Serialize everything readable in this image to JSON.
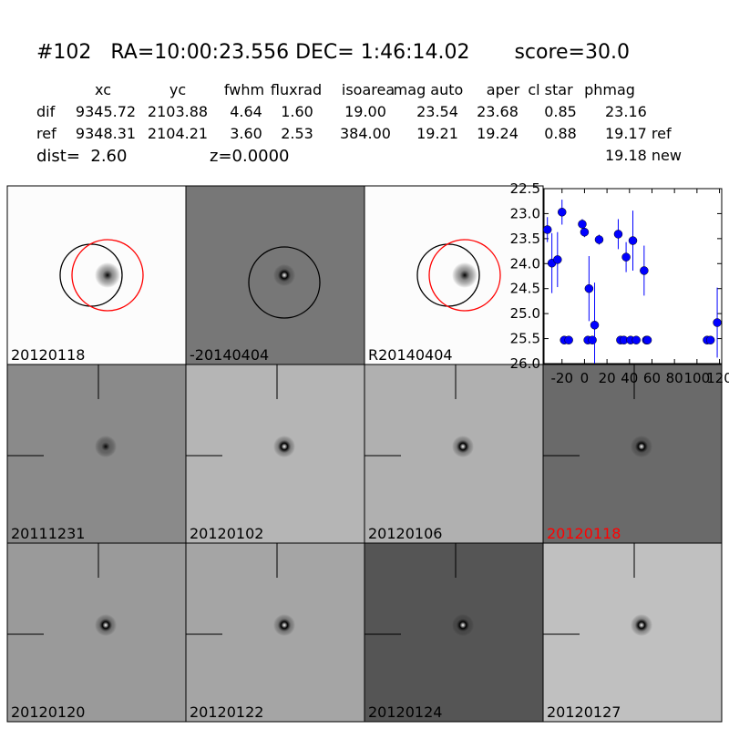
{
  "header": {
    "title": "#102   RA=10:00:23.556 DEC= 1:46:14.02       score=30.0",
    "columns": [
      "xc",
      "yc",
      "fwhm",
      "fluxrad",
      "isoarea",
      "mag auto",
      "aper",
      "cl star",
      "phmag"
    ],
    "rows": [
      {
        "label": "dif",
        "cells": [
          "9345.72",
          "2103.88",
          "4.64",
          "1.60",
          "19.00",
          "23.54",
          "23.68",
          "0.85",
          "23.16"
        ]
      },
      {
        "label": "ref",
        "cells": [
          "9348.31",
          "2104.21",
          "3.60",
          "2.53",
          "384.00",
          "19.21",
          "19.24",
          "0.88",
          "19.17 ref"
        ]
      }
    ],
    "dist": "dist=  2.60",
    "z": "z=0.0000",
    "phmag_new": "19.18 new"
  },
  "stamps": [
    "20120118",
    "-20140404",
    "R20140404",
    "20111231",
    "20120102",
    "20120106",
    "20120118",
    "20120120",
    "20120122",
    "20120124",
    "20120127"
  ],
  "chart_data": {
    "type": "scatter",
    "color": "#0000ff",
    "x": [
      -33,
      -29,
      -24,
      -20,
      -18,
      -14,
      -2,
      0,
      3,
      4,
      7,
      9,
      13,
      30,
      32,
      35,
      37,
      41,
      43,
      46,
      53,
      55,
      56,
      109,
      112,
      118
    ],
    "values": [
      23.32,
      23.99,
      23.92,
      22.97,
      25.53,
      25.53,
      23.21,
      23.37,
      25.53,
      24.5,
      25.53,
      25.23,
      23.52,
      23.41,
      25.53,
      25.53,
      23.87,
      25.53,
      23.54,
      25.53,
      24.14,
      25.53,
      25.53,
      25.53,
      25.53,
      25.18
    ],
    "errors": [
      0.25,
      0.6,
      0.55,
      0.25,
      0.05,
      0.05,
      0.1,
      0.1,
      0.05,
      0.65,
      0.05,
      0.85,
      0.1,
      0.3,
      0.05,
      0.05,
      0.3,
      0.05,
      0.6,
      0.05,
      0.5,
      0.05,
      0.05,
      0.05,
      0.05,
      0.7
    ],
    "xlim": [
      -36,
      122
    ],
    "ylim": [
      26.0,
      22.5
    ],
    "xticks": [
      -20,
      0,
      20,
      40,
      60,
      80,
      100,
      120
    ],
    "yticks": [
      22.5,
      {
        "value": 23,
        "label": "23.0"
      },
      23.5,
      {
        "value": 24,
        "label": "24.0"
      },
      24.5,
      {
        "value": 25,
        "label": "25.0"
      },
      25.5,
      {
        "value": 26,
        "label": "26.0"
      }
    ]
  }
}
